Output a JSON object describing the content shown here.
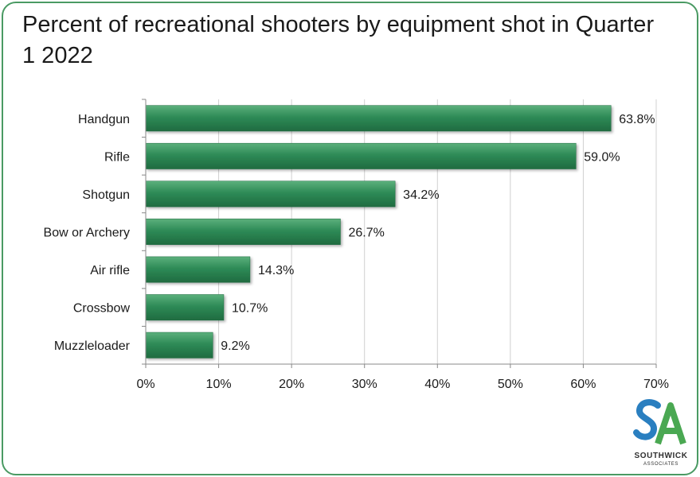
{
  "chart_data": {
    "type": "bar",
    "orientation": "horizontal",
    "title": "Percent of recreational shooters by equipment shot in Quarter 1 2022",
    "categories": [
      "Handgun",
      "Rifle",
      "Shotgun",
      "Bow or Archery",
      "Air rifle",
      "Crossbow",
      "Muzzleloader"
    ],
    "values": [
      63.8,
      59.0,
      34.2,
      26.7,
      14.3,
      10.7,
      9.2
    ],
    "data_labels": [
      "63.8%",
      "59.0%",
      "34.2%",
      "26.7%",
      "14.3%",
      "10.7%",
      "9.2%"
    ],
    "xlim": [
      0,
      70
    ],
    "x_ticks": [
      0,
      10,
      20,
      30,
      40,
      50,
      60,
      70
    ],
    "x_tick_labels": [
      "0%",
      "10%",
      "20%",
      "30%",
      "40%",
      "50%",
      "60%",
      "70%"
    ],
    "grid": true,
    "xlabel": "",
    "ylabel": "",
    "bar_color": "#2e8b57"
  },
  "logo": {
    "name": "SOUTHWICK",
    "sub": "ASSOCIATES",
    "colors": {
      "s": "#2a7fc0",
      "a": "#4aa852"
    }
  }
}
